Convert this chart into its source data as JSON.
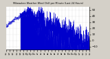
{
  "title": "Milwaukee Weather Wind Chill per Minute (Last 24 Hours)",
  "background_color": "#d4d0c8",
  "plot_bg_color": "#ffffff",
  "line_color": "#0000cc",
  "fill_color": "#0000cc",
  "y_min": -15,
  "y_max": 55,
  "yticks": [
    50,
    40,
    30,
    20,
    10,
    0,
    -10
  ],
  "num_points": 1440,
  "seed": 42
}
